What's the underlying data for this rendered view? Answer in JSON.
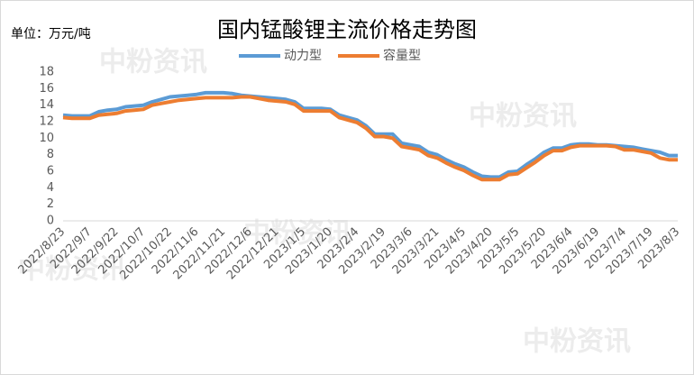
{
  "unit_label": "单位：万元/吨",
  "watermark": "中粉资讯",
  "chart_data": {
    "type": "line",
    "title": "国内锰酸锂主流价格走势图",
    "categories": [
      "2022/8/23",
      null,
      null,
      "2022/9/7",
      null,
      null,
      "2022/9/22",
      null,
      null,
      "2022/10/7",
      null,
      null,
      "2022/10/22",
      null,
      null,
      "2022/11/6",
      null,
      null,
      "2022/11/21",
      null,
      null,
      "2022/12/6",
      null,
      null,
      "2022/12/21",
      null,
      null,
      "2023/1/5",
      null,
      null,
      "2023/1/20",
      null,
      null,
      "2023/2/4",
      null,
      null,
      "2023/2/19",
      null,
      null,
      "2023/3/6",
      null,
      null,
      "2023/3/21",
      null,
      null,
      "2023/4/5",
      null,
      null,
      "2023/4/20",
      null,
      null,
      "2023/5/5",
      null,
      null,
      "2023/5/20",
      null,
      null,
      "2023/6/4",
      null,
      null,
      "2023/6/19",
      null,
      null,
      "2023/7/4",
      null,
      null,
      "2023/7/19",
      null,
      null,
      "2023/8/3"
    ],
    "series": [
      {
        "name": "动力型",
        "color": "#5b9bd5",
        "values": [
          12.8,
          12.7,
          12.7,
          12.7,
          13.2,
          13.4,
          13.5,
          13.8,
          13.9,
          14.0,
          14.4,
          14.7,
          15.0,
          15.1,
          15.2,
          15.3,
          15.5,
          15.5,
          15.5,
          15.4,
          15.2,
          15.1,
          15.0,
          14.9,
          14.8,
          14.7,
          14.4,
          13.6,
          13.6,
          13.6,
          13.5,
          12.8,
          12.5,
          12.2,
          11.5,
          10.5,
          10.5,
          10.5,
          9.4,
          9.2,
          9.0,
          8.3,
          8.0,
          7.4,
          6.9,
          6.5,
          5.9,
          5.4,
          5.3,
          5.3,
          5.9,
          6.0,
          6.8,
          7.5,
          8.3,
          8.8,
          8.8,
          9.2,
          9.3,
          9.3,
          9.2,
          9.2,
          9.1,
          9.0,
          8.9,
          8.7,
          8.5,
          8.3,
          7.9,
          7.9
        ]
      },
      {
        "name": "容量型",
        "color": "#ed7d31",
        "values": [
          12.5,
          12.4,
          12.4,
          12.4,
          12.8,
          12.9,
          13.0,
          13.3,
          13.4,
          13.5,
          14.0,
          14.2,
          14.4,
          14.6,
          14.7,
          14.8,
          14.9,
          14.9,
          14.9,
          14.9,
          15.0,
          15.0,
          14.8,
          14.6,
          14.5,
          14.4,
          14.1,
          13.3,
          13.3,
          13.3,
          13.3,
          12.5,
          12.2,
          11.9,
          11.2,
          10.2,
          10.2,
          10.0,
          9.0,
          8.8,
          8.6,
          7.9,
          7.6,
          7.0,
          6.5,
          6.1,
          5.5,
          5.0,
          5.0,
          5.0,
          5.6,
          5.7,
          6.4,
          7.1,
          7.9,
          8.5,
          8.5,
          8.9,
          9.1,
          9.1,
          9.1,
          9.1,
          9.0,
          8.6,
          8.6,
          8.4,
          8.2,
          7.6,
          7.4,
          7.4
        ]
      }
    ],
    "ylim": [
      0,
      18
    ],
    "yticks": [
      0,
      2,
      4,
      6,
      8,
      10,
      12,
      14,
      16,
      18
    ],
    "grid": false,
    "legend": "top"
  }
}
